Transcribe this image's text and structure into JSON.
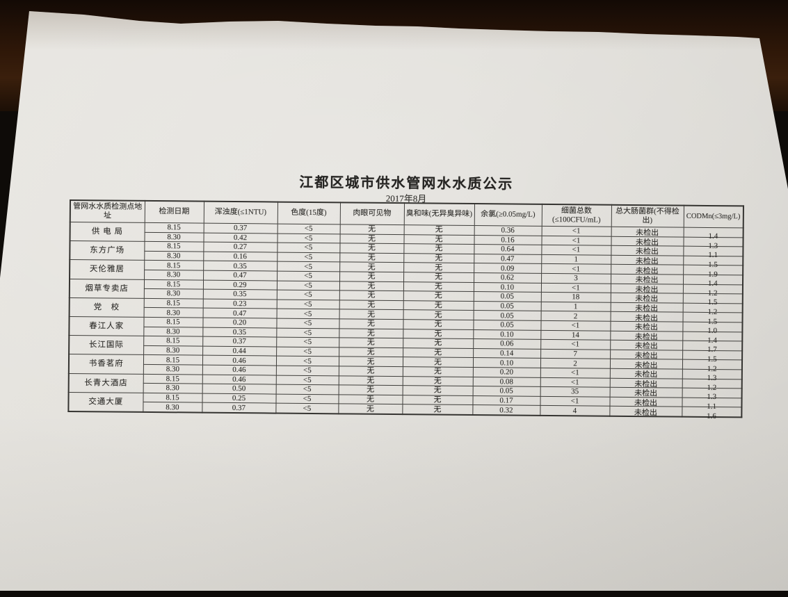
{
  "document": {
    "title": "江都区城市供水管网水水质公示",
    "subtitle": "2017年8月",
    "table": {
      "headers": [
        "管网水水质检测点地址",
        "检测日期",
        "浑浊度(≤1NTU)",
        "色度(15度)",
        "肉眼可见物",
        "臭和味(无异臭异味)",
        "余氯(≥0.05mg/L)",
        "细菌总数(≤100CFU/mL)",
        "总大肠菌群(不得检出)",
        "CODMn(≤3mg/L)"
      ],
      "locations": [
        {
          "name": "供 电 局",
          "rows": [
            {
              "date": "8.15",
              "turbidity": "0.37",
              "chroma": "<5",
              "visible": "无",
              "odor": "无",
              "chlorine": "0.36",
              "bacteria": "<1",
              "coliform": "未检出",
              "cod": "1.4"
            },
            {
              "date": "8.30",
              "turbidity": "0.42",
              "chroma": "<5",
              "visible": "无",
              "odor": "无",
              "chlorine": "0.16",
              "bacteria": "<1",
              "coliform": "未检出",
              "cod": "1.3"
            }
          ]
        },
        {
          "name": "东方广场",
          "rows": [
            {
              "date": "8.15",
              "turbidity": "0.27",
              "chroma": "<5",
              "visible": "无",
              "odor": "无",
              "chlorine": "0.64",
              "bacteria": "<1",
              "coliform": "未检出",
              "cod": "1.1"
            },
            {
              "date": "8.30",
              "turbidity": "0.16",
              "chroma": "<5",
              "visible": "无",
              "odor": "无",
              "chlorine": "0.47",
              "bacteria": "1",
              "coliform": "未检出",
              "cod": "1.5"
            }
          ]
        },
        {
          "name": "天伦雅居",
          "rows": [
            {
              "date": "8.15",
              "turbidity": "0.35",
              "chroma": "<5",
              "visible": "无",
              "odor": "无",
              "chlorine": "0.09",
              "bacteria": "<1",
              "coliform": "未检出",
              "cod": "1.9"
            },
            {
              "date": "8.30",
              "turbidity": "0.47",
              "chroma": "<5",
              "visible": "无",
              "odor": "无",
              "chlorine": "0.62",
              "bacteria": "3",
              "coliform": "未检出",
              "cod": "1.4"
            }
          ]
        },
        {
          "name": "烟草专卖店",
          "rows": [
            {
              "date": "8.15",
              "turbidity": "0.29",
              "chroma": "<5",
              "visible": "无",
              "odor": "无",
              "chlorine": "0.10",
              "bacteria": "<1",
              "coliform": "未检出",
              "cod": "1.2"
            },
            {
              "date": "8.30",
              "turbidity": "0.35",
              "chroma": "<5",
              "visible": "无",
              "odor": "无",
              "chlorine": "0.05",
              "bacteria": "18",
              "coliform": "未检出",
              "cod": "1.5"
            }
          ]
        },
        {
          "name": "党　校",
          "rows": [
            {
              "date": "8.15",
              "turbidity": "0.23",
              "chroma": "<5",
              "visible": "无",
              "odor": "无",
              "chlorine": "0.05",
              "bacteria": "1",
              "coliform": "未检出",
              "cod": "1.2"
            },
            {
              "date": "8.30",
              "turbidity": "0.47",
              "chroma": "<5",
              "visible": "无",
              "odor": "无",
              "chlorine": "0.05",
              "bacteria": "2",
              "coliform": "未检出",
              "cod": "1.5"
            }
          ]
        },
        {
          "name": "春江人家",
          "rows": [
            {
              "date": "8.15",
              "turbidity": "0.20",
              "chroma": "<5",
              "visible": "无",
              "odor": "无",
              "chlorine": "0.05",
              "bacteria": "<1",
              "coliform": "未检出",
              "cod": "1.0"
            },
            {
              "date": "8.30",
              "turbidity": "0.35",
              "chroma": "<5",
              "visible": "无",
              "odor": "无",
              "chlorine": "0.10",
              "bacteria": "14",
              "coliform": "未检出",
              "cod": "1.4"
            }
          ]
        },
        {
          "name": "长江国际",
          "rows": [
            {
              "date": "8.15",
              "turbidity": "0.37",
              "chroma": "<5",
              "visible": "无",
              "odor": "无",
              "chlorine": "0.06",
              "bacteria": "<1",
              "coliform": "未检出",
              "cod": "1.7"
            },
            {
              "date": "8.30",
              "turbidity": "0.44",
              "chroma": "<5",
              "visible": "无",
              "odor": "无",
              "chlorine": "0.14",
              "bacteria": "7",
              "coliform": "未检出",
              "cod": "1.5"
            }
          ]
        },
        {
          "name": "书香茗府",
          "rows": [
            {
              "date": "8.15",
              "turbidity": "0.46",
              "chroma": "<5",
              "visible": "无",
              "odor": "无",
              "chlorine": "0.10",
              "bacteria": "2",
              "coliform": "未检出",
              "cod": "1.2"
            },
            {
              "date": "8.30",
              "turbidity": "0.46",
              "chroma": "<5",
              "visible": "无",
              "odor": "无",
              "chlorine": "0.20",
              "bacteria": "<1",
              "coliform": "未检出",
              "cod": "1.3"
            }
          ]
        },
        {
          "name": "长青大酒店",
          "rows": [
            {
              "date": "8.15",
              "turbidity": "0.46",
              "chroma": "<5",
              "visible": "无",
              "odor": "无",
              "chlorine": "0.08",
              "bacteria": "<1",
              "coliform": "未检出",
              "cod": "1.2"
            },
            {
              "date": "8.30",
              "turbidity": "0.50",
              "chroma": "<5",
              "visible": "无",
              "odor": "无",
              "chlorine": "0.05",
              "bacteria": "35",
              "coliform": "未检出",
              "cod": "1.3"
            }
          ]
        },
        {
          "name": "交通大厦",
          "rows": [
            {
              "date": "8.15",
              "turbidity": "0.25",
              "chroma": "<5",
              "visible": "无",
              "odor": "无",
              "chlorine": "0.17",
              "bacteria": "<1",
              "coliform": "未检出",
              "cod": "1.1"
            },
            {
              "date": "8.30",
              "turbidity": "0.37",
              "chroma": "<5",
              "visible": "无",
              "odor": "无",
              "chlorine": "0.32",
              "bacteria": "4",
              "coliform": "未检出",
              "cod": "1.6"
            }
          ]
        }
      ]
    }
  }
}
